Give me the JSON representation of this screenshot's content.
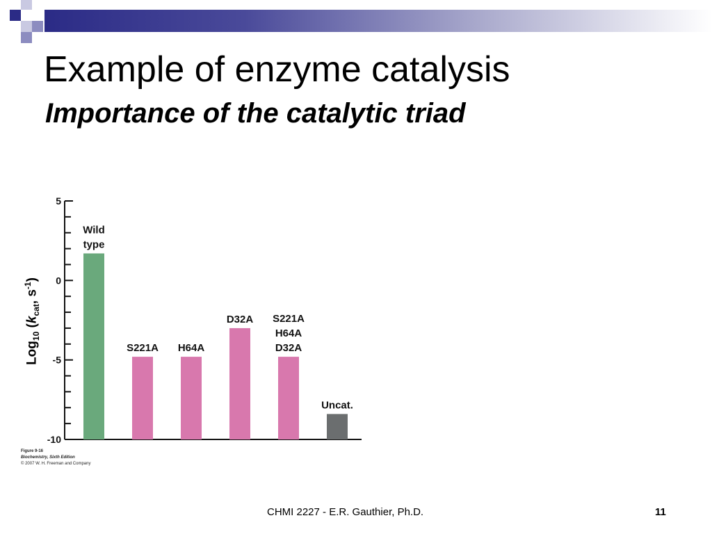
{
  "slide": {
    "title": "Example of enzyme catalysis",
    "subtitle": "Importance of the catalytic triad",
    "footer": "CHMI 2227 - E.R. Gauthier, Ph.D.",
    "page_number": "11",
    "accent_colors": {
      "dark_blue": "#2b2b86",
      "mid_blue": "#8c8cc0",
      "light_blue": "#c9c9e2"
    }
  },
  "figure_credit": {
    "line1": "Figure 9-16",
    "line2": "Biochemistry, Sixth Edition",
    "line3": "© 2007 W. H. Freeman and Company"
  },
  "chart_data": {
    "type": "bar",
    "ylabel_parts": {
      "main": "Log",
      "sub": "10",
      "open": " (",
      "k": "k",
      "ksub": "cat",
      "unit": ", s",
      "sup": "-1",
      "close": ")"
    },
    "ylim": [
      -10,
      5
    ],
    "yticks": [
      5,
      0,
      -5,
      -10
    ],
    "grid": false,
    "bars": [
      {
        "label": [
          "Wild",
          "type"
        ],
        "value": 1.7,
        "color": "#6aa97c"
      },
      {
        "label": [
          "S221A"
        ],
        "value": -4.8,
        "color": "#d878ad"
      },
      {
        "label": [
          "H64A"
        ],
        "value": -4.8,
        "color": "#d878ad"
      },
      {
        "label": [
          "D32A"
        ],
        "value": -3.0,
        "color": "#d878ad"
      },
      {
        "label": [
          "S221A",
          "H64A",
          "D32A"
        ],
        "value": -4.8,
        "color": "#d878ad"
      },
      {
        "label": [
          "Uncat."
        ],
        "value": -8.4,
        "color": "#6b6e6f"
      }
    ]
  }
}
